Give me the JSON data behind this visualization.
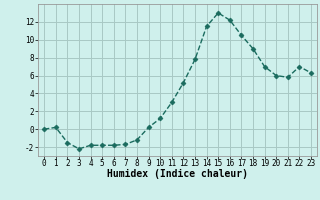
{
  "x": [
    0,
    1,
    2,
    3,
    4,
    5,
    6,
    7,
    8,
    9,
    10,
    11,
    12,
    13,
    14,
    15,
    16,
    17,
    18,
    19,
    20,
    21,
    22,
    23
  ],
  "y": [
    0,
    0.2,
    -1.5,
    -2.2,
    -1.8,
    -1.8,
    -1.8,
    -1.7,
    -1.2,
    0.2,
    1.2,
    3.0,
    5.2,
    7.8,
    11.5,
    13.0,
    12.2,
    10.5,
    9.0,
    7.0,
    6.0,
    5.8,
    7.0,
    6.3
  ],
  "line_color": "#1a6b5e",
  "marker": "D",
  "markersize": 2.5,
  "linewidth": 1.0,
  "bg_color": "#cff0ec",
  "grid_color": "#a8c8c4",
  "xlabel": "Humidex (Indice chaleur)",
  "xlabel_fontsize": 7,
  "xlim": [
    -0.5,
    23.5
  ],
  "ylim": [
    -3,
    14
  ],
  "yticks": [
    -2,
    0,
    2,
    4,
    6,
    8,
    10,
    12
  ],
  "xticks": [
    0,
    1,
    2,
    3,
    4,
    5,
    6,
    7,
    8,
    9,
    10,
    11,
    12,
    13,
    14,
    15,
    16,
    17,
    18,
    19,
    20,
    21,
    22,
    23
  ],
  "tick_fontsize": 5.5
}
